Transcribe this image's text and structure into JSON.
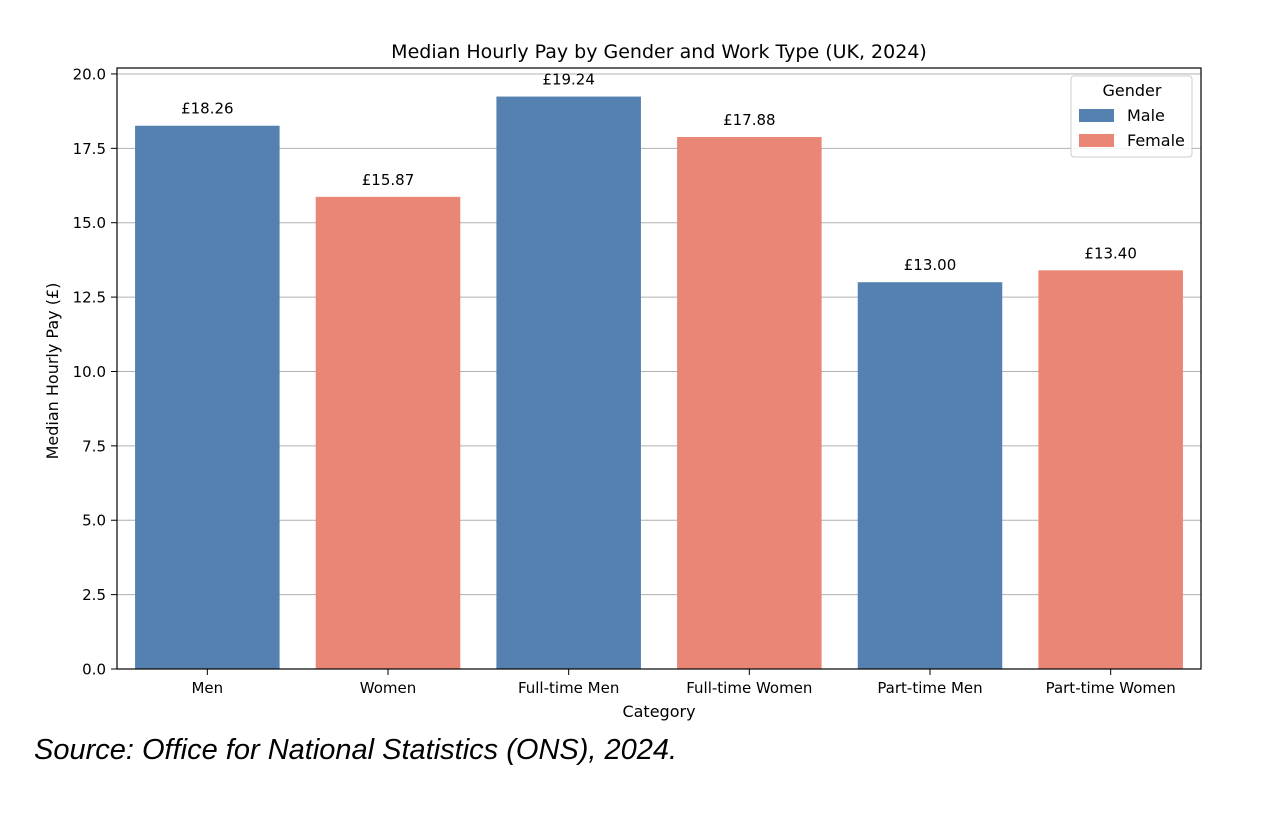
{
  "chart_data": {
    "type": "bar",
    "title": "Median Hourly Pay by Gender and Work Type (UK, 2024)",
    "xlabel": "Category",
    "ylabel": "Median Hourly Pay (£)",
    "categories": [
      "Men",
      "Women",
      "Full-time Men",
      "Full-time Women",
      "Part-time Men",
      "Part-time Women"
    ],
    "values": [
      18.26,
      15.87,
      19.24,
      17.88,
      13.0,
      13.4
    ],
    "value_labels": [
      "£18.26",
      "£15.87",
      "£19.24",
      "£17.88",
      "£13.00",
      "£13.40"
    ],
    "bar_genders": [
      "Male",
      "Female",
      "Male",
      "Female",
      "Male",
      "Female"
    ],
    "ylim": [
      0,
      20.2
    ],
    "yticks": [
      0.0,
      2.5,
      5.0,
      7.5,
      10.0,
      12.5,
      15.0,
      17.5,
      20.0
    ],
    "ytick_labels": [
      "0.0",
      "2.5",
      "5.0",
      "7.5",
      "10.0",
      "12.5",
      "15.0",
      "17.5",
      "20.0"
    ],
    "grid": "horizontal",
    "legend": {
      "title": "Gender",
      "placement": "top-right",
      "entries": [
        {
          "label": "Male",
          "color": "#5581b0"
        },
        {
          "label": "Female",
          "color": "#e98675"
        }
      ]
    },
    "colors": {
      "Male": "#5581b0",
      "Female": "#e98675"
    }
  },
  "source_note": "Source: Office for National Statistics (ONS), 2024."
}
